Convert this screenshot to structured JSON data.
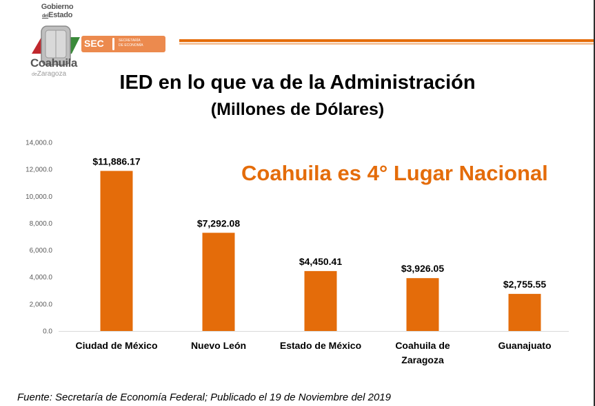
{
  "logo": {
    "gobierno_line1": "Gobierno",
    "gobierno_line2_small": "del",
    "gobierno_line2": "Estado",
    "coahuila": "Coahuila",
    "zaragoza_small": "de",
    "zaragoza": "Zaragoza",
    "sec": "SEC",
    "sec_sub1": "SECRETARÍA",
    "sec_sub2": "DE ECONOMÍA"
  },
  "colors": {
    "accent": "#e46c0a",
    "accent_light": "#f5c49d",
    "bar": "#e46c0a"
  },
  "callout": "Coahuila es 4° Lugar Nacional",
  "footer": "Fuente: Secretaría de Economía Federal; Publicado el 19 de Noviembre del 2019",
  "chart_data": {
    "type": "bar",
    "title": "IED en lo que va de la Administración",
    "subtitle": "(Millones de Dólares)",
    "xlabel": "",
    "ylabel": "",
    "ylim": [
      0,
      14000
    ],
    "grid": false,
    "legend": "none",
    "categories": [
      [
        "Ciudad de México"
      ],
      [
        "Nuevo León"
      ],
      [
        "Estado de México"
      ],
      [
        "Coahuila de",
        "Zaragoza"
      ],
      [
        "Guanajuato"
      ]
    ],
    "values": [
      11886.17,
      7292.08,
      4450.41,
      3926.05,
      2755.55
    ],
    "data_labels": [
      "$11,886.17",
      "$7,292.08",
      "$4,450.41",
      "$3,926.05",
      "$2,755.55"
    ],
    "y_ticks": [
      0,
      2000,
      4000,
      6000,
      8000,
      10000,
      12000,
      14000
    ],
    "y_tick_labels": [
      "0.0",
      "2,000.0",
      "4,000.0",
      "6,000.0",
      "8,000.0",
      "10,000.0",
      "12,000.0",
      "14,000.0"
    ]
  }
}
